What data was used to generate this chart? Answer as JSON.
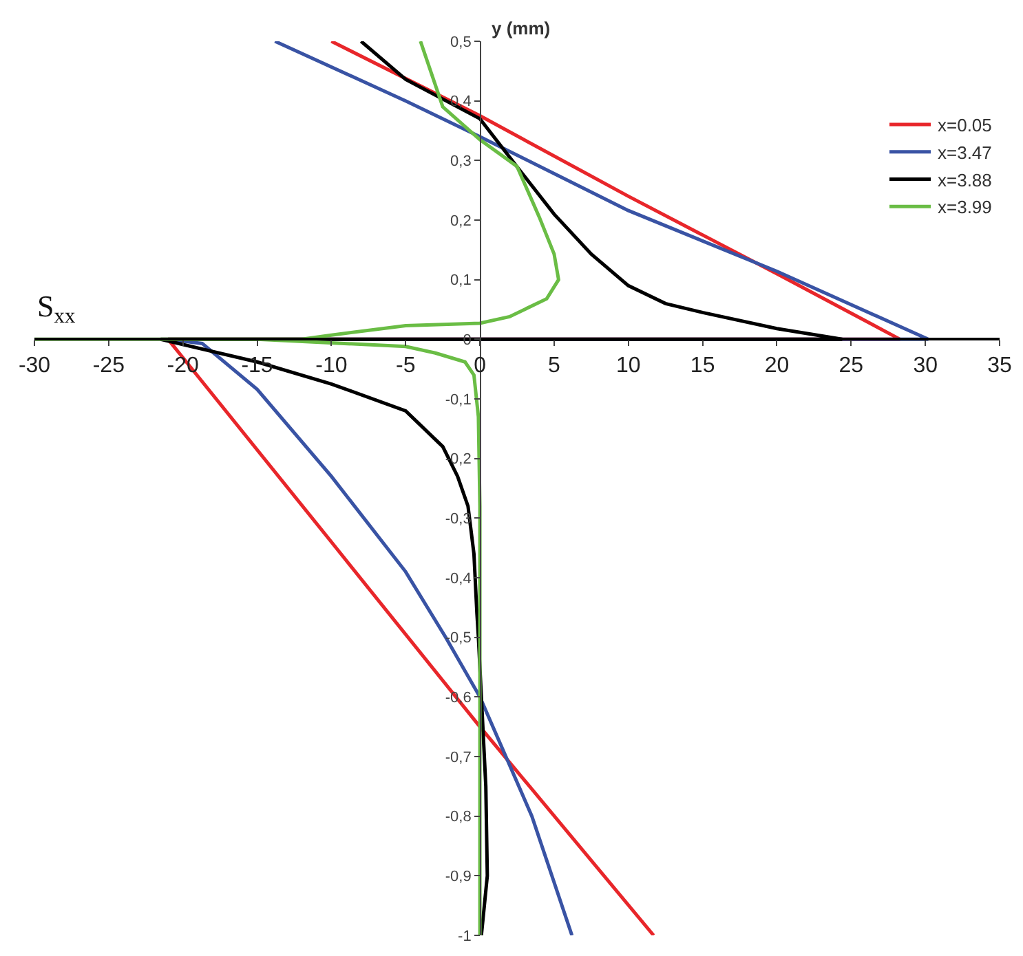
{
  "chart_data": {
    "type": "line",
    "xlabel": "S$_{xx}$",
    "ylabel": "y (mm)",
    "xlim": [
      -30,
      35
    ],
    "xticks": [
      -30,
      -25,
      -20,
      -15,
      -10,
      -5,
      0,
      5,
      10,
      15,
      20,
      25,
      30,
      35
    ],
    "ylim": [
      -1,
      0.5
    ],
    "yticks": [
      {
        "value": -1,
        "label": "-1"
      },
      {
        "value": -0.9,
        "label": "-0,9"
      },
      {
        "value": -0.8,
        "label": "-0,8"
      },
      {
        "value": -0.7,
        "label": "-0,7"
      },
      {
        "value": -0.6,
        "label": "-0,6"
      },
      {
        "value": -0.5,
        "label": "-0,5"
      },
      {
        "value": -0.4,
        "label": "-0,4"
      },
      {
        "value": -0.3,
        "label": "-0,3"
      },
      {
        "value": -0.2,
        "label": "-0,2"
      },
      {
        "value": -0.1,
        "label": "-0,1"
      },
      {
        "value": 0,
        "label": "0"
      },
      {
        "value": 0.1,
        "label": "0,1"
      },
      {
        "value": 0.2,
        "label": "0,2"
      },
      {
        "value": 0.3,
        "label": "0,3"
      },
      {
        "value": 0.4,
        "label": "0,4"
      },
      {
        "value": 0.5,
        "label": "0,5"
      }
    ],
    "legend": "right",
    "marker": "none",
    "line_style": "solid",
    "series": [
      {
        "name": "x=0.05",
        "color": "#e8262a",
        "x": [
          -10,
          0,
          10,
          20,
          28.3,
          -21,
          -10,
          0,
          11.7
        ],
        "values": [
          0.5,
          0.375,
          0.24,
          0.11,
          0,
          0,
          -0.34,
          -0.65,
          -1
        ]
      },
      {
        "name": "x=3.47",
        "color": "#3953a4",
        "x": [
          -13.8,
          -5,
          0,
          10,
          20,
          30.2,
          -21,
          -18.7,
          -15,
          -10,
          -5,
          -2.3,
          0,
          3.5,
          6.2
        ],
        "values": [
          0.5,
          0.4,
          0.34,
          0.216,
          0.114,
          0,
          0,
          -0.007,
          -0.084,
          -0.23,
          -0.39,
          -0.5,
          -0.6,
          -0.8,
          -1
        ]
      },
      {
        "name": "x=3.88",
        "color": "#000000",
        "x": [
          -8,
          -5,
          0,
          2.8,
          5,
          7.5,
          10,
          12.5,
          15,
          20,
          24.4,
          -21.5,
          -15,
          -10,
          -5,
          -2.5,
          -1.5,
          -0.8,
          -0.4,
          -0.2,
          -0.1,
          0.4,
          0.5,
          0.1
        ],
        "values": [
          0.5,
          0.436,
          0.37,
          0.28,
          0.21,
          0.143,
          0.09,
          0.06,
          0.045,
          0.018,
          0,
          0,
          -0.038,
          -0.075,
          -0.12,
          -0.18,
          -0.23,
          -0.28,
          -0.36,
          -0.46,
          -0.5,
          -0.75,
          -0.9,
          -1
        ]
      },
      {
        "name": "x=3.99",
        "color": "#6abd45",
        "x": [
          -4,
          -2.5,
          0,
          2.5,
          4,
          5,
          5.3,
          4.5,
          2,
          0,
          -5,
          -10,
          -12,
          -30,
          -15,
          -5,
          -3,
          -1,
          -0.4,
          -0.1,
          0,
          0
        ],
        "values": [
          0.5,
          0.39,
          0.335,
          0.29,
          0.205,
          0.143,
          0.1,
          0.068,
          0.038,
          0.027,
          0.023,
          0.007,
          0,
          0,
          0,
          -0.012,
          -0.023,
          -0.038,
          -0.06,
          -0.13,
          -0.28,
          -1
        ]
      }
    ]
  }
}
